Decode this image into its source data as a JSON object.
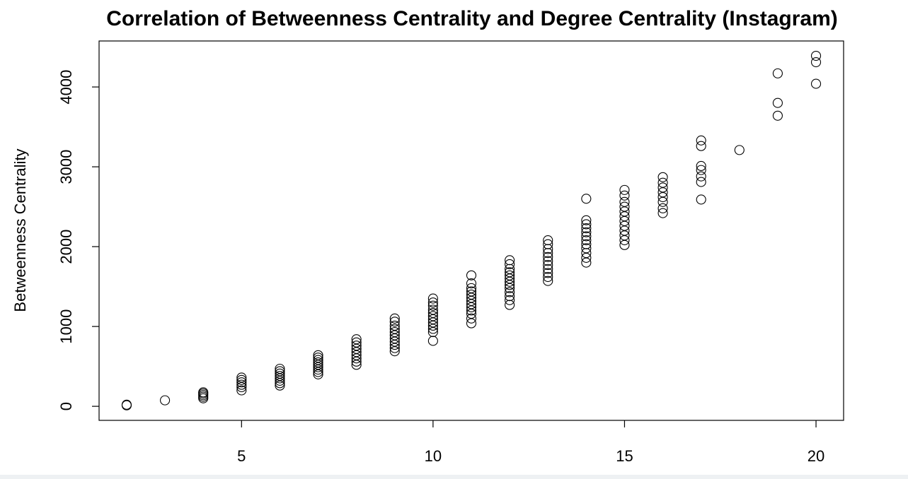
{
  "chart_data": {
    "type": "scatter",
    "title": "Correlation of Betweenness Centrality and Degree Centrality  (Instagram)",
    "y_label": "Betweenness Centrality",
    "x": [
      2,
      2,
      3,
      4,
      4,
      4,
      4,
      4,
      5,
      5,
      5,
      5,
      5,
      5,
      6,
      6,
      6,
      6,
      6,
      6,
      6,
      6,
      7,
      7,
      7,
      7,
      7,
      7,
      7,
      7,
      7,
      8,
      8,
      8,
      8,
      8,
      8,
      8,
      8,
      8,
      9,
      9,
      9,
      9,
      9,
      9,
      9,
      9,
      9,
      9,
      9,
      10,
      10,
      10,
      10,
      10,
      10,
      10,
      10,
      10,
      10,
      10,
      10,
      11,
      11,
      11,
      11,
      11,
      11,
      11,
      11,
      11,
      11,
      11,
      11,
      11,
      12,
      12,
      12,
      12,
      12,
      12,
      12,
      12,
      12,
      12,
      12,
      12,
      12,
      13,
      13,
      13,
      13,
      13,
      13,
      13,
      13,
      13,
      13,
      13,
      14,
      14,
      14,
      14,
      14,
      14,
      14,
      14,
      14,
      14,
      14,
      14,
      15,
      15,
      15,
      15,
      15,
      15,
      15,
      15,
      15,
      15,
      15,
      15,
      16,
      16,
      16,
      16,
      16,
      16,
      16,
      16,
      17,
      17,
      17,
      17,
      17,
      17,
      17,
      18,
      19,
      19,
      19,
      20,
      20,
      20
    ],
    "values": [
      12,
      20,
      75,
      100,
      120,
      140,
      160,
      175,
      200,
      240,
      270,
      300,
      330,
      360,
      260,
      290,
      320,
      350,
      380,
      410,
      440,
      470,
      400,
      430,
      460,
      490,
      520,
      550,
      580,
      610,
      640,
      520,
      560,
      600,
      640,
      680,
      720,
      760,
      800,
      840,
      690,
      730,
      770,
      810,
      850,
      890,
      930,
      970,
      1010,
      1060,
      1100,
      820,
      930,
      970,
      1010,
      1050,
      1090,
      1130,
      1170,
      1210,
      1260,
      1300,
      1350,
      1040,
      1100,
      1160,
      1200,
      1240,
      1280,
      1320,
      1360,
      1400,
      1440,
      1480,
      1540,
      1640,
      1270,
      1330,
      1380,
      1430,
      1480,
      1520,
      1560,
      1600,
      1640,
      1680,
      1720,
      1780,
      1830,
      1570,
      1620,
      1670,
      1720,
      1770,
      1820,
      1870,
      1920,
      1970,
      2030,
      2080,
      1800,
      1860,
      1920,
      1980,
      2030,
      2080,
      2130,
      2180,
      2230,
      2280,
      2330,
      2600,
      2020,
      2080,
      2140,
      2200,
      2260,
      2320,
      2380,
      2440,
      2500,
      2560,
      2640,
      2710,
      2420,
      2480,
      2560,
      2620,
      2680,
      2740,
      2800,
      2870,
      2590,
      2810,
      2880,
      2960,
      3010,
      3260,
      3330,
      3210,
      3640,
      3800,
      4170,
      4040,
      4310,
      4390
    ],
    "color": "#000000",
    "xlim": [
      1.28,
      20.72
    ],
    "ylim": [
      -176,
      4576
    ],
    "xticks": [
      5,
      10,
      15,
      20
    ],
    "yticks": [
      0,
      1000,
      2000,
      3000,
      4000
    ]
  }
}
